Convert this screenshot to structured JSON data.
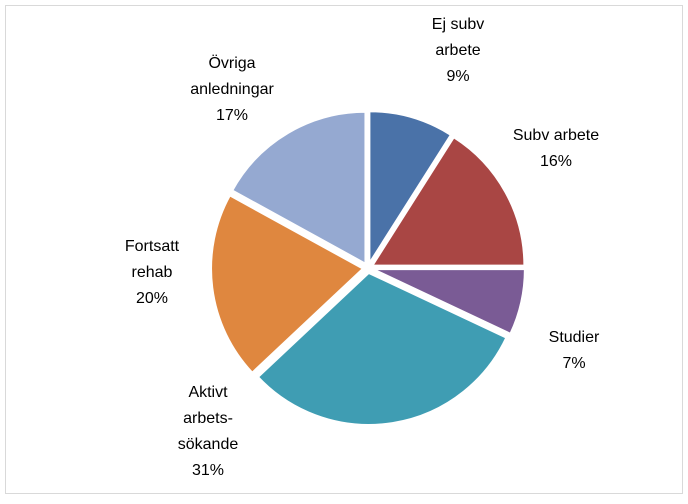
{
  "chart_data": {
    "type": "pie",
    "categories": [
      [
        "Ej subv",
        "arbete"
      ],
      [
        "Subv arbete"
      ],
      [
        "Studier"
      ],
      [
        "Aktivt",
        "arbets-",
        "sökande"
      ],
      [
        "Fortsatt",
        "rehab"
      ],
      [
        "Övriga",
        "anledningar"
      ]
    ],
    "values": [
      9,
      16,
      7,
      31,
      20,
      17
    ],
    "value_labels": [
      "9%",
      "16%",
      "7%",
      "31%",
      "20%",
      "17%"
    ],
    "colors": [
      "#4a72a8",
      "#a94644",
      "#7a5b95",
      "#3f9db3",
      "#df873f",
      "#95a9d1"
    ]
  }
}
